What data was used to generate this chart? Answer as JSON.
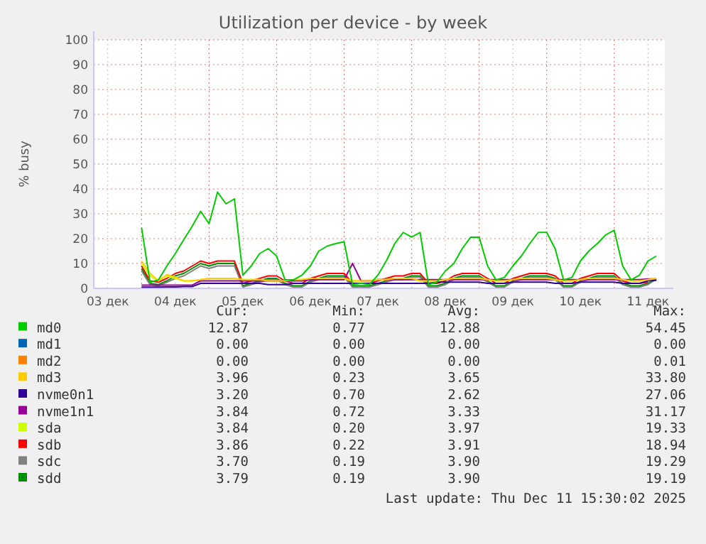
{
  "chart_data": {
    "type": "line",
    "title": "Utilization per device - by week",
    "ylabel": "% busy",
    "x": [
      "2025-12-04T00:00",
      "2025-12-04T03:00",
      "2025-12-04T06:00",
      "2025-12-04T09:00",
      "2025-12-04T12:00",
      "2025-12-04T15:00",
      "2025-12-04T18:00",
      "2025-12-04T21:00",
      "2025-12-05T00:00",
      "2025-12-05T03:00",
      "2025-12-05T06:00",
      "2025-12-05T09:00",
      "2025-12-05T12:00",
      "2025-12-05T15:00",
      "2025-12-05T18:00",
      "2025-12-05T21:00",
      "2025-12-06T00:00",
      "2025-12-06T03:00",
      "2025-12-06T06:00",
      "2025-12-06T09:00",
      "2025-12-06T12:00",
      "2025-12-06T15:00",
      "2025-12-06T18:00",
      "2025-12-06T21:00",
      "2025-12-07T00:00",
      "2025-12-07T03:00",
      "2025-12-07T06:00",
      "2025-12-07T09:00",
      "2025-12-07T12:00",
      "2025-12-07T15:00",
      "2025-12-07T18:00",
      "2025-12-07T21:00",
      "2025-12-08T00:00",
      "2025-12-08T03:00",
      "2025-12-08T06:00",
      "2025-12-08T09:00",
      "2025-12-08T12:00",
      "2025-12-08T15:00",
      "2025-12-08T18:00",
      "2025-12-08T21:00",
      "2025-12-09T00:00",
      "2025-12-09T03:00",
      "2025-12-09T06:00",
      "2025-12-09T09:00",
      "2025-12-09T12:00",
      "2025-12-09T15:00",
      "2025-12-09T18:00",
      "2025-12-09T21:00",
      "2025-12-10T00:00",
      "2025-12-10T03:00",
      "2025-12-10T06:00",
      "2025-12-10T09:00",
      "2025-12-10T12:00",
      "2025-12-10T15:00",
      "2025-12-10T18:00",
      "2025-12-10T21:00",
      "2025-12-11T00:00",
      "2025-12-11T03:00",
      "2025-12-11T06:00",
      "2025-12-11T09:00",
      "2025-12-11T12:00",
      "2025-12-11T15:00"
    ],
    "series": [
      {
        "name": "md0",
        "color": "#00cc00",
        "values": [
          24.4,
          2.5,
          3.4,
          9,
          14,
          19.6,
          25,
          31,
          26,
          38.7,
          34,
          36,
          5.3,
          9,
          14,
          16,
          13,
          3.4,
          3.4,
          5.3,
          9,
          15,
          17,
          18,
          18.7,
          1.5,
          2,
          1.5,
          5.3,
          11,
          18,
          22.5,
          20.6,
          22.5,
          1.5,
          2.5,
          7,
          10,
          16,
          20.6,
          20.6,
          9,
          3.4,
          4.4,
          9,
          13,
          18,
          22.5,
          22.5,
          16,
          3.4,
          4.4,
          11,
          15,
          18,
          21.5,
          23.4,
          9,
          3.4,
          5.3,
          11,
          13
        ]
      },
      {
        "name": "md1",
        "color": "#0066b3",
        "values": [
          null,
          null,
          null,
          null,
          null,
          null,
          null,
          null,
          null,
          null,
          null,
          null,
          null,
          null,
          null,
          null,
          null,
          null,
          null,
          null,
          null,
          null,
          null,
          null,
          null,
          null,
          null,
          null,
          null,
          null,
          null,
          null,
          null,
          null,
          null,
          null,
          null,
          null,
          null,
          null,
          null,
          null,
          null,
          null,
          null,
          null,
          null,
          null,
          null,
          null,
          null,
          null,
          null,
          null,
          null,
          null,
          null,
          null,
          null,
          null,
          null,
          null
        ]
      },
      {
        "name": "md2",
        "color": "#ff8000",
        "values": [
          null,
          null,
          null,
          null,
          null,
          null,
          null,
          null,
          null,
          null,
          null,
          null,
          null,
          null,
          null,
          null,
          null,
          null,
          null,
          null,
          null,
          null,
          null,
          null,
          null,
          null,
          null,
          null,
          null,
          null,
          null,
          null,
          null,
          null,
          null,
          null,
          null,
          null,
          null,
          null,
          null,
          null,
          null,
          null,
          null,
          null,
          null,
          null,
          null,
          null,
          null,
          null,
          null,
          null,
          null,
          null,
          null,
          null,
          null,
          null,
          null,
          null
        ]
      },
      {
        "name": "md3",
        "color": "#ffcc00",
        "values": [
          11,
          6,
          3,
          5.5,
          4.5,
          3,
          3,
          3.5,
          4,
          4,
          4,
          4,
          3.5,
          3.5,
          3.5,
          3,
          3,
          3,
          3.5,
          3.5,
          4,
          4,
          4,
          4,
          4,
          3,
          3,
          3,
          3.5,
          3.5,
          4,
          4,
          4,
          3,
          3,
          3,
          3.5,
          4,
          4,
          4,
          4,
          3.5,
          3,
          3,
          3.5,
          4,
          4,
          4,
          4,
          3.5,
          3,
          3,
          3.5,
          4,
          4,
          4,
          4,
          3.5,
          3,
          3,
          3.5,
          4
        ]
      },
      {
        "name": "nvme0n1",
        "color": "#330099",
        "values": [
          0.5,
          0.5,
          0.5,
          0.6,
          0.6,
          0.7,
          0.7,
          2,
          2,
          2,
          2,
          2,
          2,
          2,
          2,
          1.5,
          1.5,
          1.5,
          2,
          2,
          2,
          2,
          2,
          2,
          2,
          2,
          2,
          2,
          2,
          2,
          2,
          2,
          2,
          2,
          2,
          2.5,
          2.5,
          2.5,
          2.5,
          2.5,
          2.5,
          2,
          2,
          2,
          2.5,
          2.5,
          2.5,
          2.5,
          2.5,
          2,
          2,
          2,
          2.5,
          2.5,
          2.5,
          2.5,
          2.5,
          2,
          2,
          2,
          3,
          3.2
        ]
      },
      {
        "name": "nvme1n1",
        "color": "#990099",
        "values": [
          1.3,
          1.3,
          1.3,
          1.3,
          1.3,
          1.3,
          1.3,
          3,
          3,
          3,
          3,
          3,
          3,
          3,
          3,
          3,
          3,
          3,
          3,
          3,
          3.5,
          3.5,
          3.5,
          3.5,
          3.5,
          10,
          3,
          3,
          3.5,
          3.5,
          3.5,
          3.5,
          3.5,
          3.5,
          3.5,
          3.5,
          3.5,
          3.5,
          3.5,
          3.5,
          3.5,
          3.5,
          3.5,
          3.5,
          3.5,
          3.5,
          3.5,
          3.5,
          3.5,
          3.5,
          3.5,
          3.5,
          3.5,
          3.5,
          3.5,
          3.5,
          3.5,
          3.5,
          3.5,
          3.5,
          3.8,
          3.8
        ]
      },
      {
        "name": "sda",
        "color": "#ccff00",
        "values": [
          10,
          5,
          3,
          5,
          4,
          3,
          3,
          3.5,
          4,
          4,
          4,
          4,
          3.5,
          3.5,
          3.5,
          3,
          3,
          3,
          3.5,
          3.5,
          4,
          4,
          4,
          4,
          4,
          3,
          3,
          3,
          3.5,
          3.5,
          4,
          4,
          4,
          3,
          3,
          3,
          3.5,
          4,
          4,
          4,
          4,
          3.5,
          3,
          3,
          3.5,
          4,
          4,
          4,
          4,
          3.5,
          3,
          3,
          3.5,
          4,
          4,
          4,
          4,
          3.5,
          3,
          3,
          3.5,
          3.8
        ]
      },
      {
        "name": "sdb",
        "color": "#ff0000",
        "values": [
          9,
          3,
          2.5,
          4,
          6,
          7,
          9,
          11,
          10,
          11,
          11,
          11,
          2,
          3,
          4,
          5,
          5,
          3,
          2,
          2,
          4,
          5,
          6,
          6,
          6,
          2,
          2,
          2,
          3,
          4,
          5,
          5,
          6,
          6,
          2,
          2,
          3,
          5,
          6,
          6,
          6,
          4,
          2,
          2,
          4,
          5,
          6,
          6,
          6,
          5,
          2,
          2,
          4,
          5,
          6,
          6,
          6,
          3,
          2,
          2,
          2.5,
          null
        ]
      },
      {
        "name": "sdc",
        "color": "#808080",
        "values": [
          7,
          1.5,
          1,
          2.5,
          4,
          5,
          7,
          9,
          8,
          9,
          9,
          9,
          0.5,
          1.5,
          2.5,
          3.5,
          3.5,
          1.5,
          0.5,
          0.5,
          2.5,
          3.5,
          4.5,
          4.5,
          4.5,
          0.5,
          0.5,
          0.5,
          1.5,
          2.5,
          3.5,
          3.5,
          4.5,
          4.5,
          0.5,
          0.5,
          1.5,
          3.5,
          4.5,
          4.5,
          4.5,
          2.5,
          0.5,
          0.5,
          2.5,
          3.5,
          4.5,
          4.5,
          4.5,
          3.5,
          0.5,
          0.5,
          2.5,
          3.5,
          4.5,
          4.5,
          4.5,
          1.5,
          0.5,
          0.5,
          1.5,
          3.7
        ]
      },
      {
        "name": "sdd",
        "color": "#008f00",
        "values": [
          8,
          2,
          1.5,
          3,
          5,
          6,
          8,
          10,
          9,
          10,
          10,
          10,
          1,
          2,
          3,
          4,
          4,
          2,
          1,
          1,
          3,
          4,
          5,
          5,
          5,
          1,
          1,
          1,
          2,
          3,
          4,
          4,
          5,
          5,
          1,
          1,
          2,
          4,
          5,
          5,
          5,
          3,
          1,
          1,
          3,
          4,
          5,
          5,
          5,
          4,
          1,
          1,
          3,
          4,
          5,
          5,
          5,
          2,
          1,
          1,
          2,
          3.8
        ]
      }
    ],
    "xlim": [
      "2025-12-03T07:00",
      "2025-12-11T18:00"
    ],
    "xticks": [
      {
        "value": "2025-12-03T12:00",
        "label": "03 дек"
      },
      {
        "value": "2025-12-04T00:00",
        "label": null
      },
      {
        "value": "2025-12-04T12:00",
        "label": "04 дек"
      },
      {
        "value": "2025-12-05T00:00",
        "label": null
      },
      {
        "value": "2025-12-05T12:00",
        "label": "05 дек"
      },
      {
        "value": "2025-12-06T00:00",
        "label": null
      },
      {
        "value": "2025-12-06T12:00",
        "label": "06 дек"
      },
      {
        "value": "2025-12-07T00:00",
        "label": null
      },
      {
        "value": "2025-12-07T12:00",
        "label": "07 дек"
      },
      {
        "value": "2025-12-08T00:00",
        "label": null
      },
      {
        "value": "2025-12-08T12:00",
        "label": "08 дек"
      },
      {
        "value": "2025-12-09T00:00",
        "label": null
      },
      {
        "value": "2025-12-09T12:00",
        "label": "09 дек"
      },
      {
        "value": "2025-12-10T00:00",
        "label": null
      },
      {
        "value": "2025-12-10T12:00",
        "label": "10 дек"
      },
      {
        "value": "2025-12-11T00:00",
        "label": null
      },
      {
        "value": "2025-12-11T12:00",
        "label": "11 дек"
      }
    ],
    "ylim": [
      0,
      100
    ],
    "yticks": [
      0,
      10,
      20,
      30,
      40,
      50,
      60,
      70,
      80,
      90,
      100
    ],
    "grid": true,
    "legend": "bottom",
    "annotations": [
      "Cur:",
      "Min:",
      "Avg:",
      "Max:",
      "12.87",
      "0.77",
      "12.88",
      "54.45",
      "0.00",
      "0.00",
      "0.00",
      "0.00",
      "0.00",
      "0.00",
      "0.00",
      "0.01",
      "3.96",
      "0.23",
      "3.65",
      "33.80",
      "3.20",
      "0.70",
      "2.62",
      "27.06",
      "3.84",
      "0.72",
      "3.33",
      "31.17",
      "3.84",
      "0.20",
      "3.97",
      "19.33",
      "3.86",
      "0.22",
      "3.91",
      "18.94",
      "3.70",
      "0.19",
      "3.90",
      "19.29",
      "3.79",
      "0.19",
      "3.90",
      "19.19",
      "Last update: Thu Dec 11 15:30:02 2025"
    ]
  }
}
